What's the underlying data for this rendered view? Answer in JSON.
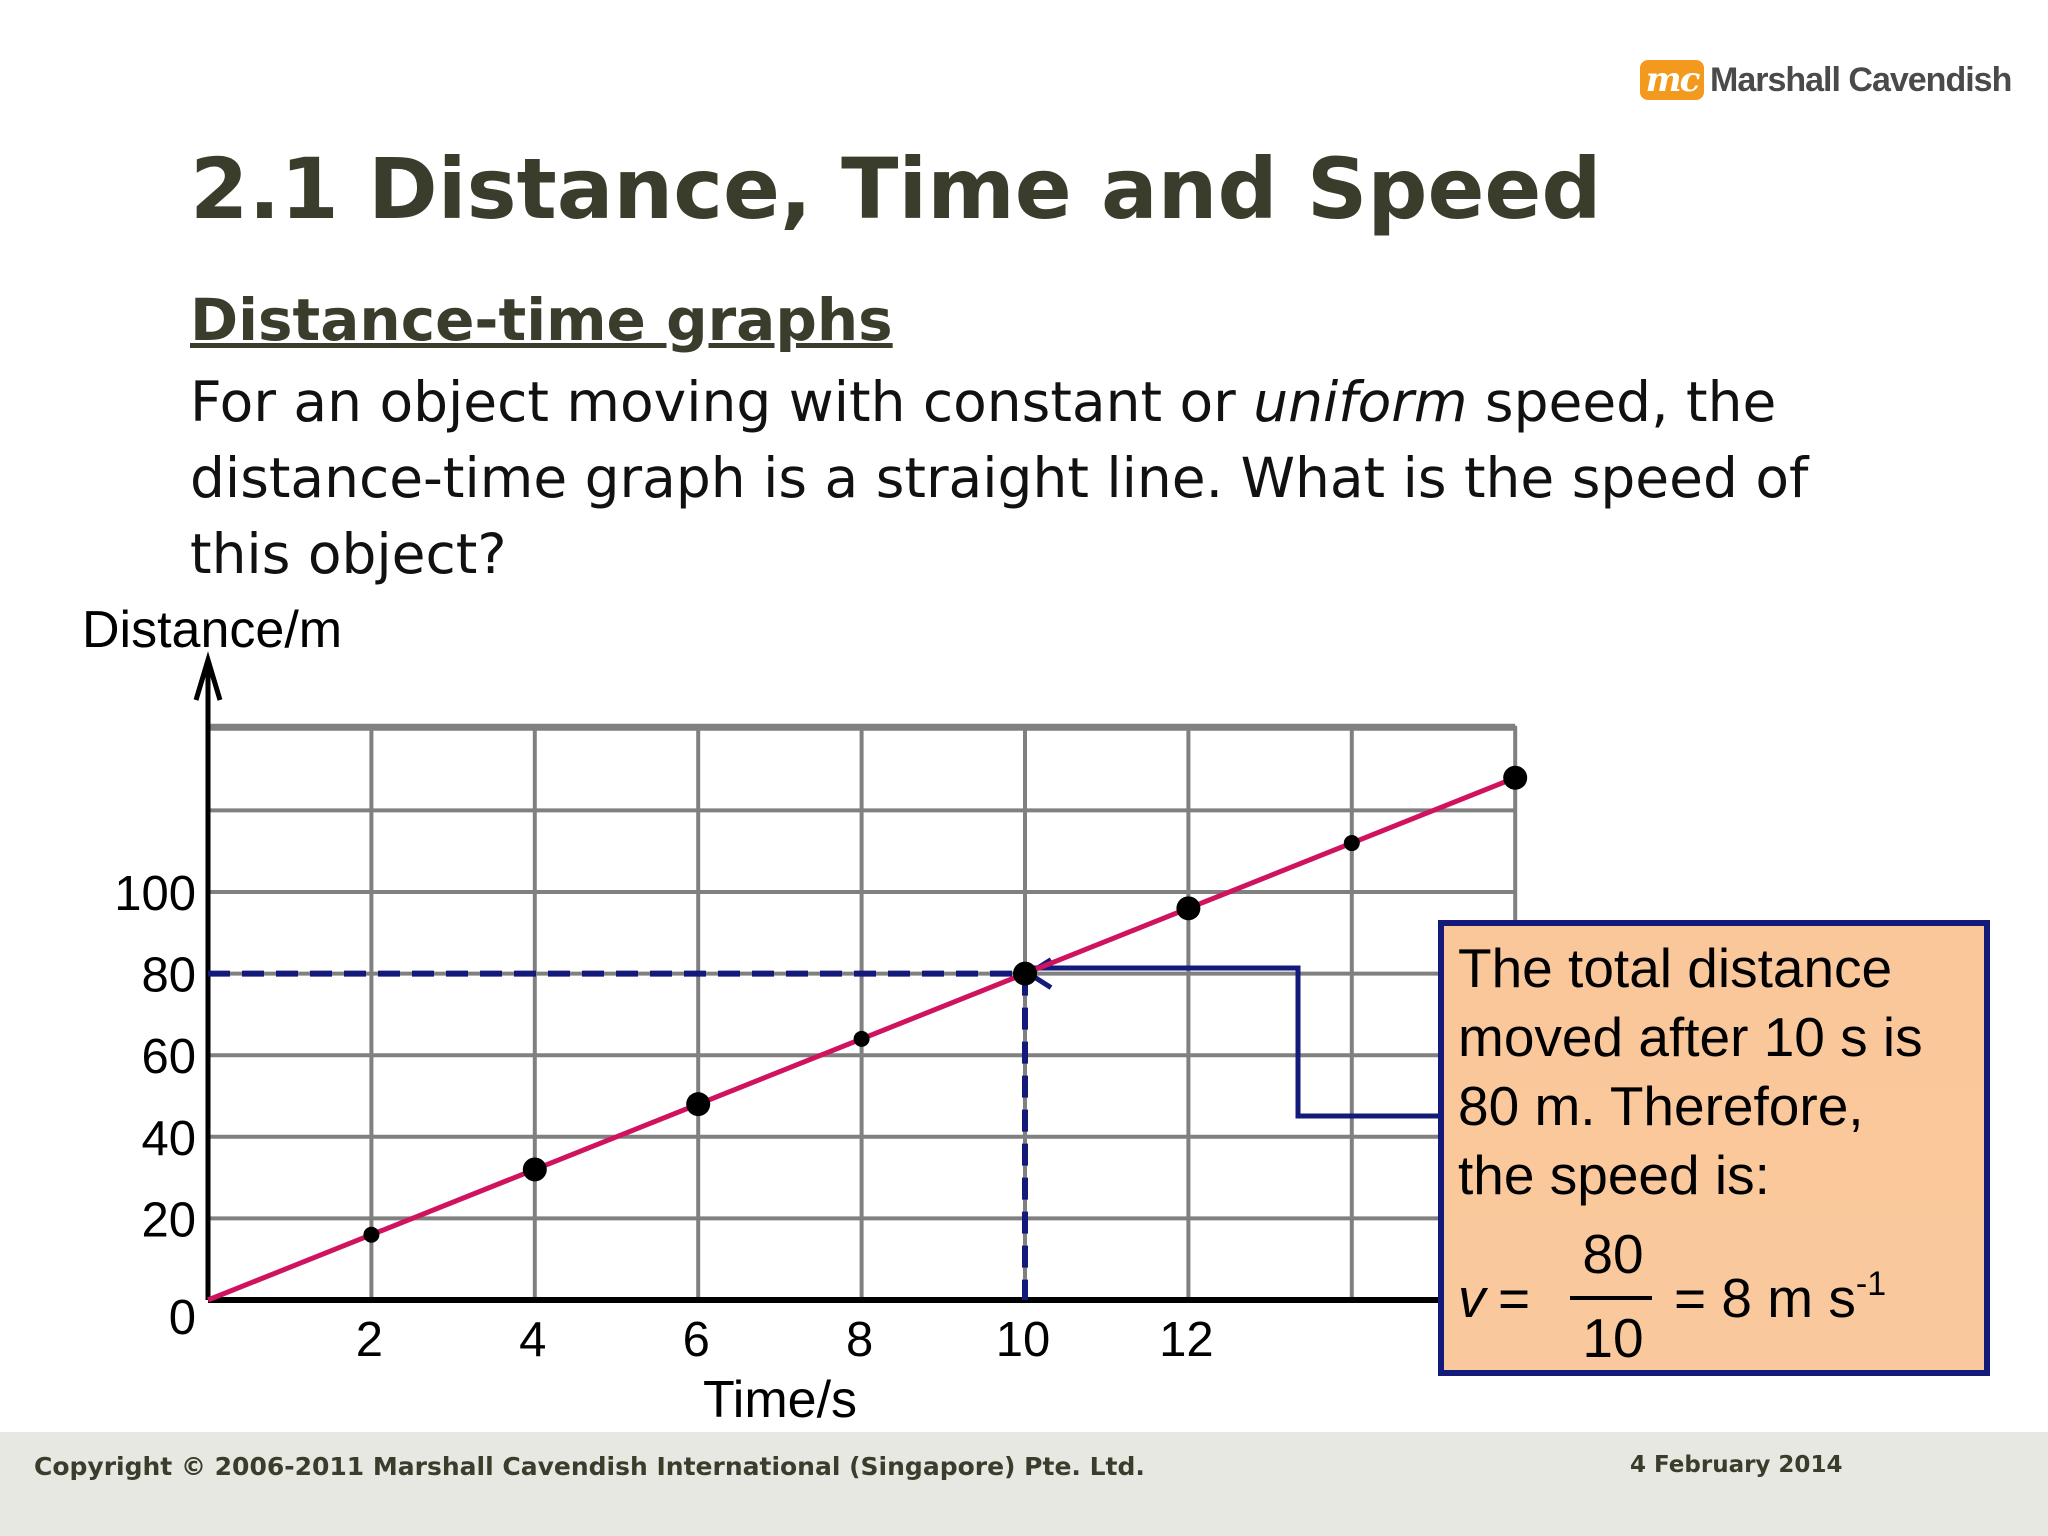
{
  "brand": {
    "logo_mark": "mc",
    "name": "Marshall Cavendish",
    "color": "#f39a1e"
  },
  "slide": {
    "title": "2.1 Distance, Time and Speed",
    "subtitle": "Distance-time graphs",
    "body_before_em": "For an object moving with constant or ",
    "body_em": "uniform",
    "body_after_em": " speed, the distance-time graph is a straight line. What is the speed of this object?"
  },
  "chart_data": {
    "type": "line",
    "ylabel": "Distance/m",
    "xlabel": "Time/s",
    "x_ticks": [
      2,
      4,
      6,
      8,
      10,
      12
    ],
    "y_ticks": [
      0,
      20,
      40,
      60,
      80,
      100
    ],
    "xlim": [
      0,
      16
    ],
    "ylim": [
      0,
      128
    ],
    "grid": true,
    "line": {
      "x": [
        0,
        16
      ],
      "y": [
        0,
        128
      ],
      "color": "#d0135f"
    },
    "points": [
      {
        "x": 2,
        "y": 16,
        "size": "small"
      },
      {
        "x": 4,
        "y": 32,
        "size": "large"
      },
      {
        "x": 6,
        "y": 48,
        "size": "large"
      },
      {
        "x": 8,
        "y": 64,
        "size": "small"
      },
      {
        "x": 10,
        "y": 80,
        "size": "large"
      },
      {
        "x": 12,
        "y": 96,
        "size": "large"
      },
      {
        "x": 14,
        "y": 112,
        "size": "small"
      },
      {
        "x": 16,
        "y": 128,
        "size": "large"
      }
    ],
    "highlight": {
      "x": 10,
      "y": 80,
      "color": "#141a7a"
    }
  },
  "callout": {
    "lines": [
      "The total distance",
      "moved after 10 s is",
      "80 m. Therefore,",
      "the speed is:"
    ],
    "var": "v",
    "equals": "=",
    "numerator": "80",
    "denominator": "10",
    "result": "= 8 m s",
    "result_sup": "-1"
  },
  "footer": {
    "copyright": "Copyright © 2006-2011 Marshall Cavendish International (Singapore) Pte. Ltd.",
    "date": "4 February 2014"
  }
}
